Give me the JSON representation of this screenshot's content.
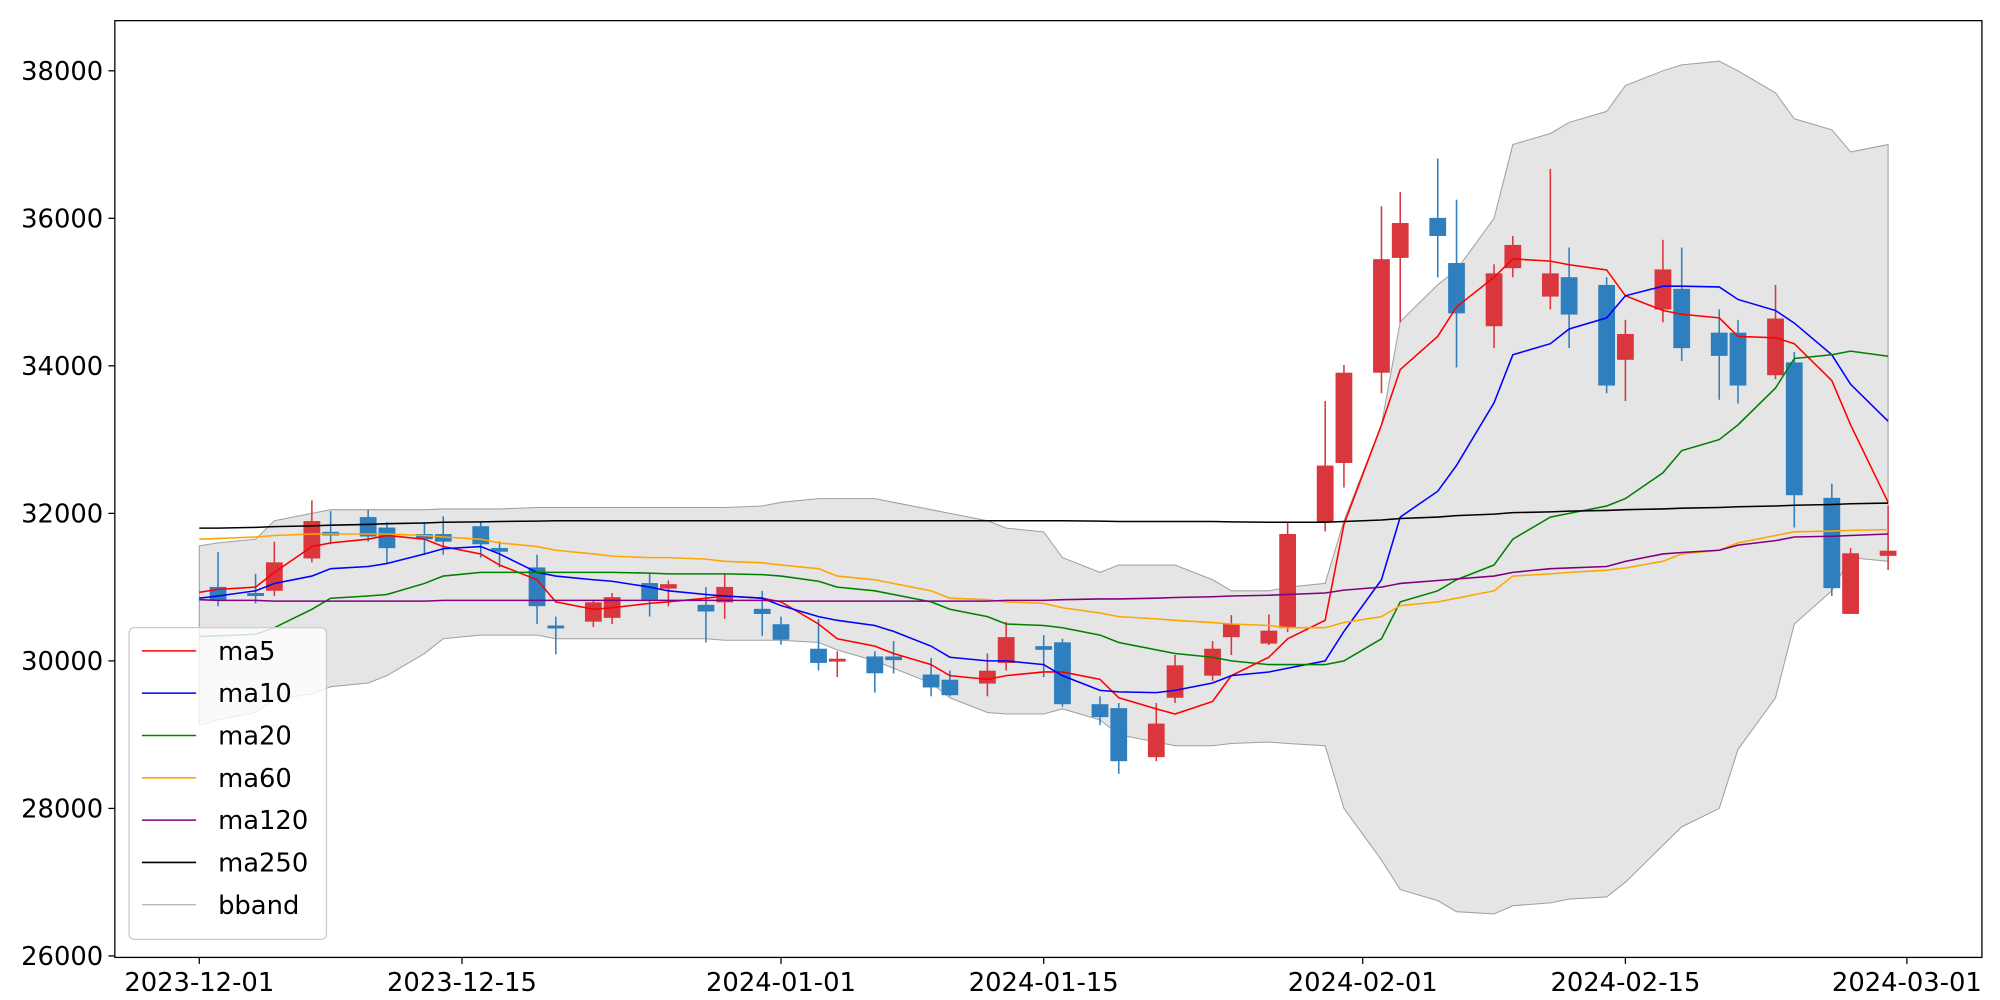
{
  "chart_data": {
    "type": "candlestick",
    "x": [
      "2023-12-01",
      "2023-12-02",
      "2023-12-04",
      "2023-12-05",
      "2023-12-07",
      "2023-12-08",
      "2023-12-10",
      "2023-12-11",
      "2023-12-13",
      "2023-12-14",
      "2023-12-16",
      "2023-12-17",
      "2023-12-19",
      "2023-12-20",
      "2023-12-22",
      "2023-12-23",
      "2023-12-25",
      "2023-12-26",
      "2023-12-28",
      "2023-12-29",
      "2023-12-31",
      "2024-01-01",
      "2024-01-03",
      "2024-01-04",
      "2024-01-06",
      "2024-01-07",
      "2024-01-09",
      "2024-01-10",
      "2024-01-12",
      "2024-01-13",
      "2024-01-15",
      "2024-01-16",
      "2024-01-18",
      "2024-01-19",
      "2024-01-21",
      "2024-01-22",
      "2024-01-24",
      "2024-01-25",
      "2024-01-27",
      "2024-01-28",
      "2024-01-30",
      "2024-01-31",
      "2024-02-02",
      "2024-02-03",
      "2024-02-05",
      "2024-02-06",
      "2024-02-08",
      "2024-02-09",
      "2024-02-11",
      "2024-02-12",
      "2024-02-14",
      "2024-02-15",
      "2024-02-17",
      "2024-02-18",
      "2024-02-20",
      "2024-02-21",
      "2024-02-23",
      "2024-02-24",
      "2024-02-26",
      "2024-02-27",
      "2024-02-29"
    ],
    "xlim": [
      "2023-11-26T12:00:00",
      "2024-03-05T00:00:00"
    ],
    "xticks": [
      "2023-12-01",
      "2023-12-15",
      "2024-01-01",
      "2024-01-15",
      "2024-02-01",
      "2024-02-15",
      "2024-03-01"
    ],
    "ylim": [
      25980,
      38680
    ],
    "yticks": [
      26000,
      28000,
      30000,
      32000,
      34000,
      36000,
      38000
    ],
    "legend_loc": "lower left",
    "candles": {
      "up_color": "#d9363e",
      "down_color": "#2f7fbf",
      "open": [
        null,
        31003,
        30920,
        30951,
        31389,
        31750,
        31950,
        31808,
        31720,
        31720,
        31826,
        31530,
        31267,
        30480,
        30532,
        30584,
        31055,
        30980,
        30760,
        30794,
        30706,
        30497,
        30165,
        29990,
        30060,
        30060,
        29815,
        29745,
        29693,
        29972,
        30200,
        30252,
        29413,
        29360,
        28695,
        29500,
        29800,
        30322,
        30235,
        30444,
        31879,
        32683,
        33907,
        35464,
        36006,
        35394,
        34537,
        35324,
        34939,
        35202,
        35097,
        34082,
        34764,
        35044,
        34450,
        34450,
        33873,
        34047,
        32211,
        30637,
        31424
      ],
      "high": [
        null,
        31476,
        31180,
        31616,
        32176,
        32030,
        32050,
        31880,
        31880,
        31960,
        31880,
        31620,
        31440,
        30600,
        30830,
        30920,
        31180,
        31090,
        31000,
        31180,
        30950,
        30600,
        30570,
        30130,
        30130,
        30270,
        30040,
        29870,
        30100,
        30530,
        30350,
        30300,
        29520,
        29430,
        29430,
        30080,
        30270,
        30620,
        30630,
        31880,
        33523,
        34012,
        36164,
        36356,
        36811,
        36251,
        35377,
        35761,
        36671,
        35604,
        35202,
        34624,
        35709,
        35604,
        34764,
        34624,
        35097,
        34187,
        32403,
        31529,
        32106
      ],
      "low": [
        null,
        30741,
        30780,
        30880,
        31336,
        31580,
        31616,
        31320,
        31440,
        31440,
        31400,
        31270,
        30500,
        30090,
        30460,
        30500,
        30600,
        30740,
        30250,
        30570,
        30340,
        30220,
        29870,
        29780,
        29570,
        29830,
        29520,
        29520,
        29520,
        29870,
        29780,
        29380,
        29130,
        28470,
        28640,
        29430,
        29730,
        30080,
        30215,
        30390,
        31756,
        32350,
        33628,
        34590,
        35202,
        33977,
        34240,
        35202,
        34764,
        34240,
        33628,
        33523,
        34590,
        34065,
        33540,
        33488,
        33820,
        31809,
        30881,
        30637,
        31232
      ],
      "close": [
        null,
        30829,
        30880,
        31336,
        31896,
        31700,
        31686,
        31529,
        31650,
        31616,
        31581,
        31480,
        30742,
        30440,
        30794,
        30864,
        30829,
        31040,
        30670,
        31003,
        30636,
        30287,
        29972,
        30030,
        29832,
        30010,
        29640,
        29535,
        29867,
        30322,
        30150,
        29413,
        29238,
        28640,
        29150,
        29940,
        30165,
        30497,
        30410,
        31721,
        32648,
        33907,
        35446,
        35936,
        35761,
        34712,
        35254,
        35639,
        35254,
        34695,
        33733,
        34432,
        35307,
        34240,
        34135,
        33733,
        34642,
        32246,
        30986,
        31459,
        31494
      ]
    },
    "series": [
      {
        "name": "ma5",
        "color": "#ff0000",
        "values": [
          30930,
          30970,
          31000,
          31200,
          31550,
          31600,
          31650,
          31700,
          31650,
          31550,
          31450,
          31300,
          31100,
          30800,
          30700,
          30720,
          30780,
          30800,
          30850,
          30880,
          30850,
          30800,
          30500,
          30300,
          30200,
          30100,
          29950,
          29800,
          29750,
          29800,
          29850,
          29850,
          29750,
          29500,
          29350,
          29280,
          29450,
          29800,
          30050,
          30300,
          30550,
          31850,
          33200,
          33950,
          34400,
          34800,
          35200,
          35450,
          35420,
          35370,
          35300,
          34950,
          34750,
          34700,
          34650,
          34400,
          34380,
          34300,
          33800,
          33200,
          32150
        ]
      },
      {
        "name": "ma10",
        "color": "#0000ff",
        "values": [
          30850,
          30880,
          30950,
          31050,
          31150,
          31250,
          31280,
          31320,
          31450,
          31520,
          31550,
          31450,
          31200,
          31150,
          31100,
          31080,
          31000,
          30950,
          30900,
          30880,
          30850,
          30750,
          30600,
          30550,
          30480,
          30400,
          30200,
          30050,
          30000,
          30000,
          29950,
          29800,
          29600,
          29580,
          29570,
          29600,
          29700,
          29800,
          29850,
          29900,
          30000,
          30400,
          31100,
          31950,
          32300,
          32650,
          33500,
          34150,
          34300,
          34500,
          34650,
          34950,
          35080,
          35080,
          35070,
          34900,
          34750,
          34580,
          34150,
          33750,
          33250
        ]
      },
      {
        "name": "ma20",
        "color": "#008000",
        "values": [
          30330,
          30340,
          30360,
          30450,
          30700,
          30850,
          30880,
          30900,
          31050,
          31150,
          31200,
          31200,
          31200,
          31200,
          31200,
          31200,
          31190,
          31180,
          31180,
          31180,
          31170,
          31150,
          31080,
          31000,
          30950,
          30900,
          30800,
          30700,
          30600,
          30500,
          30480,
          30450,
          30350,
          30250,
          30150,
          30100,
          30050,
          30000,
          29950,
          29950,
          29950,
          30000,
          30300,
          30800,
          30950,
          31100,
          31300,
          31650,
          31950,
          32000,
          32100,
          32200,
          32550,
          32850,
          33000,
          33200,
          33700,
          34100,
          34150,
          34200,
          34130
        ]
      },
      {
        "name": "ma60",
        "color": "#ffa500",
        "values": [
          31650,
          31660,
          31680,
          31700,
          31720,
          31720,
          31720,
          31720,
          31700,
          31680,
          31650,
          31600,
          31550,
          31500,
          31450,
          31420,
          31400,
          31400,
          31380,
          31350,
          31330,
          31300,
          31250,
          31150,
          31100,
          31050,
          30950,
          30850,
          30830,
          30800,
          30780,
          30720,
          30650,
          30600,
          30570,
          30550,
          30520,
          30500,
          30480,
          30450,
          30450,
          30520,
          30600,
          30750,
          30800,
          30850,
          30950,
          31150,
          31180,
          31200,
          31230,
          31260,
          31350,
          31450,
          31500,
          31600,
          31700,
          31750,
          31760,
          31770,
          31780
        ]
      },
      {
        "name": "ma120",
        "color": "#800080",
        "values": [
          30830,
          30820,
          30820,
          30810,
          30810,
          30810,
          30810,
          30810,
          30810,
          30820,
          30820,
          30820,
          30820,
          30820,
          30820,
          30820,
          30820,
          30820,
          30820,
          30820,
          30820,
          30810,
          30810,
          30810,
          30810,
          30810,
          30810,
          30810,
          30810,
          30820,
          30820,
          30830,
          30840,
          30840,
          30850,
          30860,
          30870,
          30880,
          30890,
          30900,
          30920,
          30960,
          31000,
          31050,
          31090,
          31110,
          31150,
          31200,
          31250,
          31260,
          31280,
          31350,
          31450,
          31470,
          31500,
          31570,
          31630,
          31680,
          31690,
          31700,
          31720
        ]
      },
      {
        "name": "ma250",
        "color": "#000000",
        "values": [
          31800,
          31800,
          31810,
          31820,
          31830,
          31840,
          31850,
          31860,
          31870,
          31880,
          31885,
          31890,
          31895,
          31900,
          31900,
          31900,
          31900,
          31900,
          31900,
          31900,
          31900,
          31900,
          31900,
          31900,
          31900,
          31900,
          31900,
          31900,
          31900,
          31900,
          31900,
          31900,
          31895,
          31890,
          31890,
          31890,
          31890,
          31885,
          31880,
          31880,
          31880,
          31890,
          31910,
          31930,
          31950,
          31970,
          31990,
          32010,
          32020,
          32030,
          32040,
          32050,
          32060,
          32070,
          32080,
          32090,
          32100,
          32110,
          32120,
          32130,
          32140
        ]
      }
    ],
    "band": {
      "name": "bband",
      "color": "#a0a0a0",
      "fill": "#e5e5e5",
      "upper": [
        31560,
        31600,
        31650,
        31900,
        32000,
        32050,
        32050,
        32050,
        32050,
        32060,
        32060,
        32060,
        32080,
        32080,
        32080,
        32080,
        32080,
        32080,
        32080,
        32080,
        32100,
        32150,
        32200,
        32200,
        32200,
        32150,
        32050,
        32000,
        31900,
        31800,
        31750,
        31400,
        31200,
        31300,
        31300,
        31300,
        31100,
        30950,
        30950,
        31000,
        31050,
        31900,
        33200,
        34600,
        35100,
        35300,
        36000,
        37000,
        37150,
        37300,
        37450,
        37800,
        38000,
        38080,
        38130,
        38000,
        37700,
        37350,
        37200,
        36900,
        37000
      ],
      "lower": [
        29130,
        29200,
        29300,
        29480,
        29550,
        29650,
        29700,
        29800,
        30100,
        30300,
        30350,
        30350,
        30350,
        30300,
        30300,
        30300,
        30300,
        30300,
        30300,
        30280,
        30280,
        30280,
        30250,
        30150,
        30000,
        29900,
        29700,
        29500,
        29300,
        29280,
        29280,
        29350,
        29200,
        29000,
        28900,
        28850,
        28850,
        28880,
        28900,
        28880,
        28850,
        28000,
        27300,
        26900,
        26750,
        26600,
        26570,
        26680,
        26720,
        26770,
        26800,
        27000,
        27500,
        27750,
        28000,
        28800,
        29500,
        30500,
        30950,
        31400,
        31350
      ]
    }
  }
}
